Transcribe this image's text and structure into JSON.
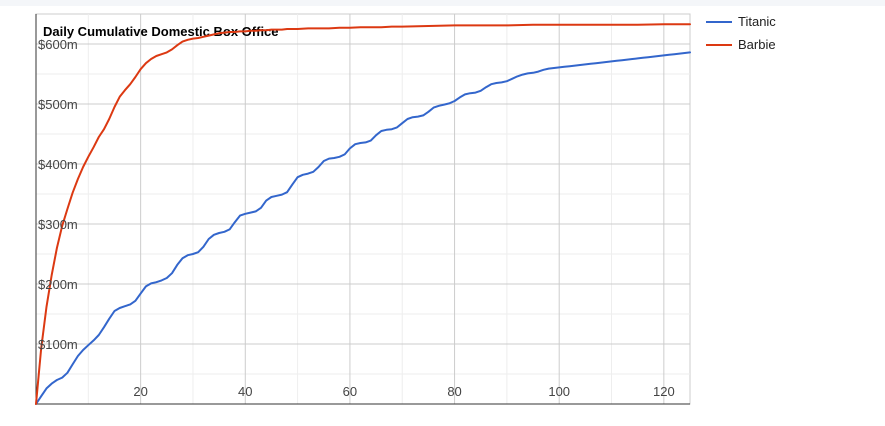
{
  "chart_data": {
    "type": "line",
    "title": "Daily Cumulative Domestic Box Office",
    "xlabel": "",
    "ylabel": "",
    "xlim": [
      0,
      125
    ],
    "ylim": [
      0,
      650
    ],
    "x_ticks": [
      20,
      40,
      60,
      80,
      100,
      120
    ],
    "y_ticks": [
      100,
      200,
      300,
      400,
      500,
      600
    ],
    "y_tick_labels": [
      "$100m",
      "$200m",
      "$300m",
      "$400m",
      "$500m",
      "$600m"
    ],
    "x_tick_labels": [
      "20",
      "40",
      "60",
      "80",
      "100",
      "120"
    ],
    "legend_position": "top-right",
    "grid": true,
    "series": [
      {
        "name": "Titanic",
        "color": "#3366cc",
        "x": [
          0,
          1,
          2,
          3,
          4,
          5,
          6,
          7,
          8,
          9,
          10,
          11,
          12,
          13,
          14,
          15,
          16,
          17,
          18,
          19,
          20,
          21,
          22,
          23,
          24,
          25,
          26,
          27,
          28,
          29,
          30,
          31,
          32,
          33,
          34,
          35,
          36,
          37,
          38,
          39,
          40,
          41,
          42,
          43,
          44,
          45,
          46,
          47,
          48,
          49,
          50,
          51,
          52,
          53,
          54,
          55,
          56,
          57,
          58,
          59,
          60,
          61,
          62,
          63,
          64,
          65,
          66,
          67,
          68,
          69,
          70,
          71,
          72,
          73,
          74,
          75,
          76,
          77,
          78,
          79,
          80,
          81,
          82,
          83,
          84,
          85,
          86,
          87,
          88,
          89,
          90,
          91,
          92,
          93,
          94,
          95,
          96,
          97,
          98,
          99,
          100,
          101,
          102,
          103,
          104,
          105,
          106,
          107,
          108,
          109,
          110,
          111,
          112,
          113,
          114,
          115,
          116,
          117,
          118,
          119,
          120,
          121,
          122,
          123,
          124,
          125
        ],
        "values": [
          0,
          13,
          26,
          34,
          40,
          44,
          52,
          66,
          80,
          90,
          98,
          106,
          115,
          128,
          142,
          155,
          160,
          163,
          166,
          172,
          184,
          196,
          201,
          203,
          206,
          210,
          218,
          232,
          243,
          248,
          250,
          253,
          262,
          275,
          282,
          285,
          287,
          291,
          303,
          314,
          317,
          319,
          321,
          327,
          339,
          345,
          347,
          349,
          353,
          366,
          378,
          382,
          384,
          387,
          395,
          405,
          409,
          410,
          412,
          416,
          426,
          433,
          435,
          436,
          439,
          448,
          455,
          457,
          458,
          461,
          468,
          475,
          478,
          479,
          481,
          487,
          494,
          497,
          499,
          501,
          505,
          511,
          516,
          518,
          519,
          522,
          528,
          533,
          535,
          536,
          538,
          542,
          546,
          549,
          551,
          552,
          554,
          557,
          559,
          560,
          561,
          562,
          563,
          564,
          565,
          566,
          567,
          568,
          569,
          570,
          571,
          572,
          573,
          574,
          575,
          576,
          577,
          578,
          579,
          580,
          581,
          582,
          583,
          584,
          585,
          586
        ]
      },
      {
        "name": "Barbie",
        "color": "#dc3912",
        "x": [
          0,
          1,
          2,
          3,
          4,
          5,
          6,
          7,
          8,
          9,
          10,
          11,
          12,
          13,
          14,
          15,
          16,
          17,
          18,
          19,
          20,
          21,
          22,
          23,
          24,
          25,
          26,
          27,
          28,
          29,
          30,
          31,
          32,
          33,
          34,
          35,
          36,
          37,
          38,
          39,
          40,
          41,
          42,
          43,
          44,
          45,
          46,
          47,
          48,
          49,
          50,
          52,
          54,
          56,
          58,
          60,
          62,
          64,
          66,
          68,
          70,
          75,
          80,
          85,
          90,
          95,
          100,
          105,
          110,
          115,
          120,
          125
        ],
        "values": [
          0,
          93,
          162,
          215,
          260,
          297,
          325,
          352,
          375,
          395,
          412,
          428,
          445,
          458,
          475,
          495,
          512,
          523,
          533,
          545,
          558,
          568,
          575,
          580,
          583,
          586,
          591,
          598,
          604,
          607,
          609,
          610,
          612,
          614,
          616,
          618,
          619,
          620,
          620,
          621,
          621,
          622,
          622,
          623,
          623,
          624,
          624,
          624,
          625,
          625,
          625,
          626,
          626,
          626,
          627,
          627,
          628,
          628,
          628,
          629,
          629,
          630,
          631,
          631,
          631,
          632,
          632,
          632,
          632,
          632,
          633,
          633
        ]
      }
    ]
  }
}
